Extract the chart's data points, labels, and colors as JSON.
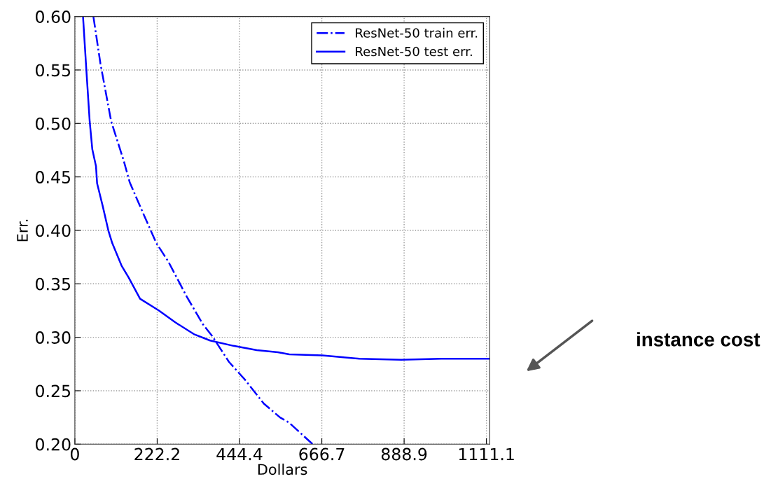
{
  "chart_data": {
    "type": "line",
    "xlabel": "Dollars",
    "ylabel": "Err.",
    "xlim": [
      0,
      1120
    ],
    "xticks": [
      0,
      222.2,
      444.4,
      666.7,
      888.9,
      1111.1
    ],
    "ylim": [
      0.2,
      0.6
    ],
    "yticks": [
      {
        "value": 0.2,
        "label": "0.20"
      },
      {
        "value": 0.25,
        "label": "0.25"
      },
      {
        "value": 0.3,
        "label": "0.30"
      },
      {
        "value": 0.35,
        "label": "0.35"
      },
      {
        "value": 0.4,
        "label": "0.40"
      },
      {
        "value": 0.45,
        "label": "0.45"
      },
      {
        "value": 0.5,
        "label": "0.50"
      },
      {
        "value": 0.55,
        "label": "0.55"
      },
      {
        "value": 0.6,
        "label": "0.60"
      }
    ],
    "grid": true,
    "legend": "top right",
    "series": [
      {
        "name": "ResNet-50 train err.",
        "color": "#0000ff",
        "line_style": "dotted",
        "x": [
          50,
          69,
          98,
          132,
          148,
          183,
          220,
          252,
          302,
          346,
          371,
          416,
          460,
          510,
          554,
          579,
          642
        ],
        "values": [
          0.6,
          0.556,
          0.502,
          0.465,
          0.445,
          0.417,
          0.388,
          0.371,
          0.338,
          0.312,
          0.301,
          0.277,
          0.26,
          0.238,
          0.225,
          0.22,
          0.2
        ]
      },
      {
        "name": "ResNet-50 test err.",
        "color": "#0000ff",
        "line_style": "solid",
        "x": [
          22,
          31,
          40,
          47,
          57,
          60,
          75,
          91,
          101,
          126,
          145,
          176,
          227,
          271,
          321,
          365,
          428,
          491,
          548,
          579,
          668,
          768,
          881,
          989,
          1118
        ],
        "values": [
          0.6,
          0.55,
          0.502,
          0.476,
          0.46,
          0.444,
          0.423,
          0.399,
          0.388,
          0.367,
          0.356,
          0.336,
          0.325,
          0.314,
          0.303,
          0.297,
          0.292,
          0.288,
          0.286,
          0.284,
          0.283,
          0.28,
          0.279,
          0.28,
          0.28
        ]
      }
    ],
    "annotations": [
      "instance cost"
    ]
  }
}
